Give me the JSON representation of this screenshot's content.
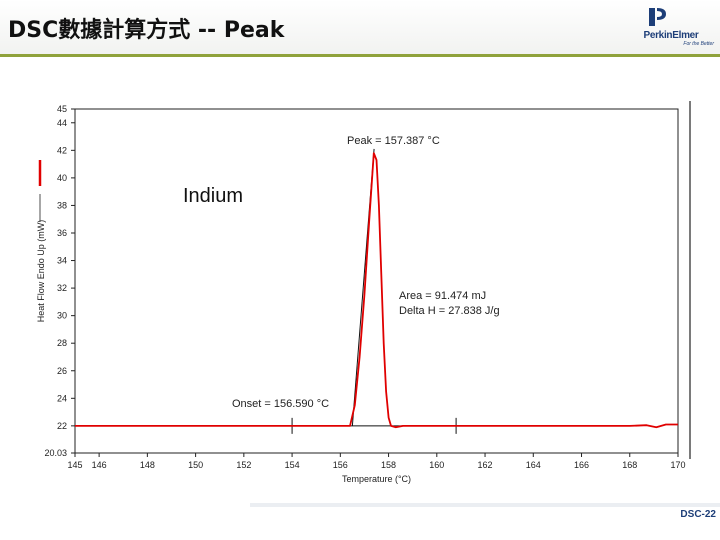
{
  "slide": {
    "title": "DSC數據計算方式 -- Peak",
    "page_number": "DSC-22"
  },
  "logo": {
    "name": "PerkinElmer",
    "tagline": "For the Better",
    "icon": "perkinelmer-logo-icon",
    "brand_color": "#1d3e78"
  },
  "colors": {
    "curve": "#e00000",
    "construction_lines": "#000000",
    "header_rule": "#8fa23b"
  },
  "chart_data": {
    "type": "line",
    "xlabel": "Temperature (°C)",
    "ylabel": "Heat Flow Endo Up (mW)",
    "xlim": [
      145,
      170
    ],
    "ylim": [
      20.03,
      45
    ],
    "x_ticks": [
      "145",
      "146",
      "148",
      "150",
      "152",
      "154",
      "156",
      "158",
      "160",
      "162",
      "164",
      "166",
      "168",
      "170"
    ],
    "x_tick_values": [
      145,
      146,
      148,
      150,
      152,
      154,
      156,
      158,
      160,
      162,
      164,
      166,
      168,
      170
    ],
    "y_ticks": [
      "20.03",
      "22",
      "24",
      "26",
      "28",
      "30",
      "32",
      "34",
      "36",
      "38",
      "40",
      "42",
      "44",
      "45"
    ],
    "y_tick_values": [
      20.03,
      22,
      24,
      26,
      28,
      30,
      32,
      34,
      36,
      38,
      40,
      42,
      44,
      45
    ],
    "series": [
      {
        "type": "line",
        "color": "#e00000",
        "x": [
          145,
          150,
          155,
          156.4,
          156.6,
          156.8,
          157.0,
          157.2,
          157.39,
          157.5,
          157.6,
          157.7,
          157.8,
          157.9,
          158.0,
          158.1,
          158.3,
          158.6,
          160,
          165,
          168,
          168.7,
          169.1,
          169.5,
          170
        ],
        "y": [
          22.0,
          22.0,
          22.0,
          22.0,
          23.5,
          27.0,
          31.5,
          37.0,
          41.8,
          41.3,
          38.0,
          33.0,
          28.0,
          24.5,
          22.6,
          22.0,
          21.9,
          22.0,
          22.0,
          22.0,
          22.0,
          22.05,
          21.9,
          22.1,
          22.1
        ]
      }
    ],
    "baseline": {
      "x": [
        154,
        160.8
      ],
      "y": [
        22.0,
        22.0
      ]
    },
    "baseline_ticks": [
      154,
      160.8
    ],
    "onset_tangent": {
      "x": [
        156.5,
        157.4
      ],
      "y": [
        22.0,
        42.1
      ]
    },
    "annotations": {
      "peak": "Peak = 157.387 °C",
      "area": "Area = 91.474 mJ",
      "delta_h": "Delta H = 27.838 J/g",
      "onset": "Onset = 156.590 °C",
      "sample": "Indium"
    },
    "legend": {
      "position": "left",
      "swatch_color": "#e00000"
    },
    "grid": false
  }
}
